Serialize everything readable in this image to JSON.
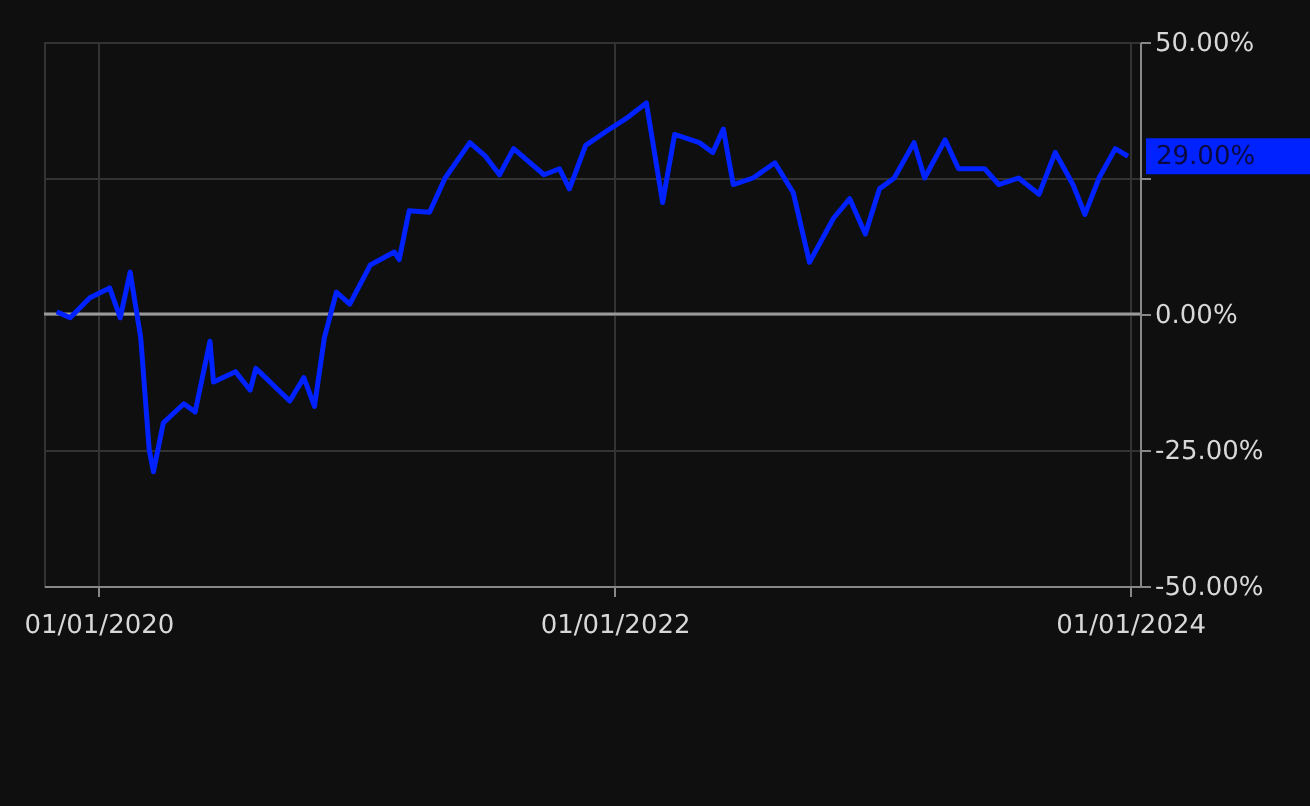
{
  "chart_data": {
    "type": "line",
    "x": [
      "2019-11-03",
      "2019-11-22",
      "2019-12-20",
      "2020-01-17",
      "2020-02-01",
      "2020-02-15",
      "2020-03-01",
      "2020-03-13",
      "2020-03-19",
      "2020-04-02",
      "2020-05-01",
      "2020-05-17",
      "2020-06-07",
      "2020-06-12",
      "2020-07-13",
      "2020-08-03",
      "2020-08-11",
      "2020-09-28",
      "2020-10-18",
      "2020-11-02",
      "2020-11-16",
      "2020-12-03",
      "2020-12-22",
      "2021-01-20",
      "2021-02-23",
      "2021-03-02",
      "2021-03-16",
      "2021-04-14",
      "2021-05-06",
      "2021-06-10",
      "2021-07-02",
      "2021-07-22",
      "2021-08-11",
      "2021-09-23",
      "2021-10-15",
      "2021-10-29",
      "2021-11-21",
      "2021-12-25",
      "2022-01-17",
      "2022-02-15",
      "2022-03-10",
      "2022-03-27",
      "2022-05-01",
      "2022-05-20",
      "2022-06-04",
      "2022-06-18",
      "2022-07-16",
      "2022-08-16",
      "2022-09-11",
      "2022-10-04",
      "2022-11-07",
      "2022-11-30",
      "2022-12-22",
      "2023-01-11",
      "2023-02-01",
      "2023-03-01",
      "2023-03-16",
      "2023-04-14",
      "2023-05-03",
      "2023-06-09",
      "2023-06-29",
      "2023-07-27",
      "2023-08-25",
      "2023-09-17",
      "2023-10-12",
      "2023-10-29",
      "2023-11-18",
      "2023-12-11",
      "2023-12-29"
    ],
    "series": [
      {
        "color": "#0022ff",
        "values": [
          0.4,
          -0.7,
          3,
          4.8,
          -0.7,
          7.7,
          -4.4,
          -25,
          -29,
          -20,
          -16.5,
          -18,
          -5,
          -12.5,
          -10.6,
          -14,
          -10,
          -16,
          -11.7,
          -17,
          -4.4,
          4,
          1.8,
          9,
          11.4,
          10,
          19,
          18.7,
          25,
          31.5,
          29,
          25.6,
          30.4,
          25.6,
          26.7,
          23,
          31,
          34,
          35.9,
          38.8,
          20.5,
          33,
          31.5,
          29.7,
          34,
          23.8,
          25,
          27.8,
          22.3,
          9.5,
          17.6,
          21.2,
          14.7,
          23,
          25,
          31.5,
          25,
          32,
          26.7,
          26.7,
          23.8,
          25,
          22,
          29.7,
          23.8,
          18.3,
          25,
          30.4,
          29
        ]
      }
    ],
    "xlim": [
      "2019-10-16",
      "2024-01-15"
    ],
    "xticks": [
      {
        "value": "2020-01-01",
        "label": "01/01/2020"
      },
      {
        "value": "2022-01-01",
        "label": "01/01/2022"
      },
      {
        "value": "2024-01-01",
        "label": "01/01/2024"
      }
    ],
    "ylim": [
      -50,
      50
    ],
    "yticks": [
      {
        "value": -50,
        "label": "-50.00%"
      },
      {
        "value": -25,
        "label": "-25.00%"
      },
      {
        "value": 0,
        "label": "0.00%"
      },
      {
        "value": 25,
        "label": null
      },
      {
        "value": 50,
        "label": "50.00%"
      }
    ],
    "ref_lines": [
      {
        "axis": "y",
        "value": 0,
        "color": "#9a9a9a"
      }
    ],
    "annotations": [
      "29.00%"
    ],
    "grid": true,
    "line_style": "solid"
  }
}
